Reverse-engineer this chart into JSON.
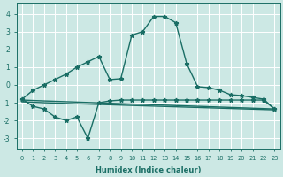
{
  "title": "",
  "xlabel": "Humidex (Indice chaleur)",
  "ylabel": "",
  "bg_color": "#cce8e4",
  "line_color": "#1a6e65",
  "grid_color": "#ffffff",
  "xlim": [
    -0.5,
    23.5
  ],
  "ylim": [
    -3.6,
    4.6
  ],
  "xticks": [
    0,
    1,
    2,
    3,
    4,
    5,
    6,
    7,
    8,
    9,
    10,
    11,
    12,
    13,
    14,
    15,
    16,
    17,
    18,
    19,
    20,
    21,
    22,
    23
  ],
  "yticks": [
    -3,
    -2,
    -1,
    0,
    1,
    2,
    3,
    4
  ],
  "line1_x": [
    0,
    1,
    2,
    3,
    4,
    5,
    6,
    7,
    8,
    9,
    10,
    11,
    12,
    13,
    14,
    15,
    16,
    17,
    18,
    19,
    20,
    21,
    22,
    23
  ],
  "line1_y": [
    -0.8,
    -0.3,
    0.0,
    0.3,
    0.6,
    1.0,
    1.3,
    1.6,
    0.3,
    0.35,
    2.8,
    3.0,
    3.85,
    3.85,
    3.5,
    1.2,
    -0.1,
    -0.15,
    -0.3,
    -0.55,
    -0.6,
    -0.7,
    -0.8,
    -1.35
  ],
  "line2_x": [
    0,
    1,
    2,
    3,
    4,
    5,
    6,
    7,
    8,
    9,
    10,
    11,
    12,
    13,
    14,
    15,
    16,
    17,
    18,
    19,
    20,
    21,
    22,
    23
  ],
  "line2_y": [
    -0.8,
    -1.2,
    -1.35,
    -1.8,
    -2.0,
    -1.8,
    -3.0,
    -1.0,
    -0.9,
    -0.85,
    -0.85,
    -0.85,
    -0.85,
    -0.85,
    -0.85,
    -0.85,
    -0.85,
    -0.85,
    -0.85,
    -0.85,
    -0.85,
    -0.85,
    -0.85,
    -1.35
  ],
  "line3_x": [
    0,
    2,
    23
  ],
  "line3_y": [
    -0.85,
    -0.9,
    -1.35
  ],
  "line4_x": [
    0,
    2,
    23
  ],
  "line4_y": [
    -0.95,
    -1.0,
    -1.4
  ],
  "marker": "*",
  "markersize": 3.5,
  "linewidth": 1.0
}
